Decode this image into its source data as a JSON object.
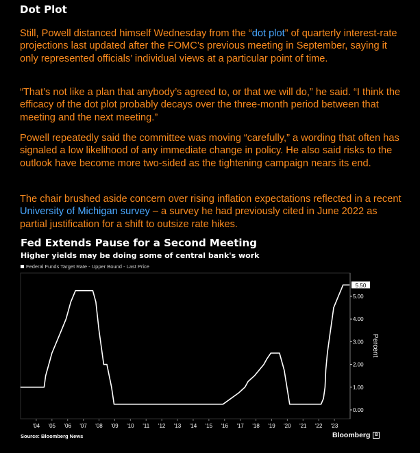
{
  "article": {
    "heading": "Dot Plot",
    "paragraphs": [
      {
        "segments": [
          {
            "text": "Still, Powell distanced himself Wednesday from the “"
          },
          {
            "text": "dot plot",
            "link": true
          },
          {
            "text": "” of quarterly interest-rate projections last updated after the FOMC’s previous meeting in September, saying it only represented officials’ individual views at a particular point of time."
          }
        ]
      },
      {
        "segments": [
          {
            "text": "“That’s not like a plan that anybody’s agreed to, or that we will do,” he said. “I think the efficacy of the dot plot probably decays over the three-month period between that meeting and the next meeting.”"
          }
        ]
      },
      {
        "segments": [
          {
            "text": "Powell repeatedly said the committee was moving “carefully,” a wording that often has signaled a low likelihood of any immediate change in policy. He also said risks to the outlook have become more two-sided as the tightening campaign nears its end."
          }
        ]
      },
      {
        "segments": [
          {
            "text": "The chair brushed aside concern over rising inflation expectations reflected in a recent "
          },
          {
            "text": "University of Michigan survey",
            "link": true
          },
          {
            "text": " – a survey he had previously cited in June 2022 as partial justification for a shift to outsize rate hikes."
          }
        ]
      }
    ]
  },
  "chart": {
    "title": "Fed Extends Pause for a Second Meeting",
    "subtitle": "Higher yields may be doing some of central bank's work",
    "source": "Source: Bloomberg News",
    "brand": "Bloomberg",
    "brand_icon": "bloomberg-b-icon"
  },
  "chart_data": {
    "type": "line",
    "series": [
      {
        "name": "Federal Funds Target Rate - Upper Bound - Last Price",
        "points": [
          [
            2003.0,
            1.0
          ],
          [
            2004.5,
            1.0
          ],
          [
            2004.6,
            1.5
          ],
          [
            2004.8,
            2.0
          ],
          [
            2005.0,
            2.5
          ],
          [
            2005.3,
            3.0
          ],
          [
            2005.6,
            3.5
          ],
          [
            2005.9,
            4.0
          ],
          [
            2006.2,
            4.75
          ],
          [
            2006.5,
            5.25
          ],
          [
            2007.6,
            5.25
          ],
          [
            2007.8,
            4.75
          ],
          [
            2008.0,
            3.5
          ],
          [
            2008.3,
            2.0
          ],
          [
            2008.5,
            2.0
          ],
          [
            2008.8,
            1.0
          ],
          [
            2008.96,
            0.25
          ],
          [
            2015.9,
            0.25
          ],
          [
            2016.9,
            0.75
          ],
          [
            2017.3,
            1.0
          ],
          [
            2017.5,
            1.25
          ],
          [
            2017.9,
            1.5
          ],
          [
            2018.2,
            1.75
          ],
          [
            2018.5,
            2.0
          ],
          [
            2018.7,
            2.25
          ],
          [
            2018.95,
            2.5
          ],
          [
            2019.5,
            2.5
          ],
          [
            2019.6,
            2.25
          ],
          [
            2019.7,
            2.0
          ],
          [
            2019.8,
            1.75
          ],
          [
            2020.15,
            0.25
          ],
          [
            2022.15,
            0.25
          ],
          [
            2022.3,
            0.5
          ],
          [
            2022.4,
            1.0
          ],
          [
            2022.45,
            1.75
          ],
          [
            2022.55,
            2.5
          ],
          [
            2022.7,
            3.25
          ],
          [
            2022.85,
            4.0
          ],
          [
            2022.95,
            4.5
          ],
          [
            2023.1,
            4.75
          ],
          [
            2023.25,
            5.0
          ],
          [
            2023.4,
            5.25
          ],
          [
            2023.55,
            5.5
          ],
          [
            2023.95,
            5.5
          ]
        ]
      }
    ],
    "x_ticks": [
      "'04",
      "'05",
      "'06",
      "'07",
      "'08",
      "'09",
      "'10",
      "'11",
      "'12",
      "'13",
      "'14",
      "'15",
      "'16",
      "'17",
      "'18",
      "'19",
      "'20",
      "'21",
      "'22",
      "'23"
    ],
    "y_ticks": [
      "0.00",
      "1.00",
      "2.00",
      "3.00",
      "4.00",
      "5.00"
    ],
    "last_value_label": "5.50",
    "ylabel": "Percent",
    "ylim": [
      0,
      6
    ],
    "xlim": [
      2003.0,
      2024.0
    ],
    "grid": false,
    "legend_position": "top-left"
  },
  "colors": {
    "background": "#000000",
    "text_accent": "#fb8b1e",
    "link": "#4aa8ff",
    "line": "#ffffff"
  }
}
